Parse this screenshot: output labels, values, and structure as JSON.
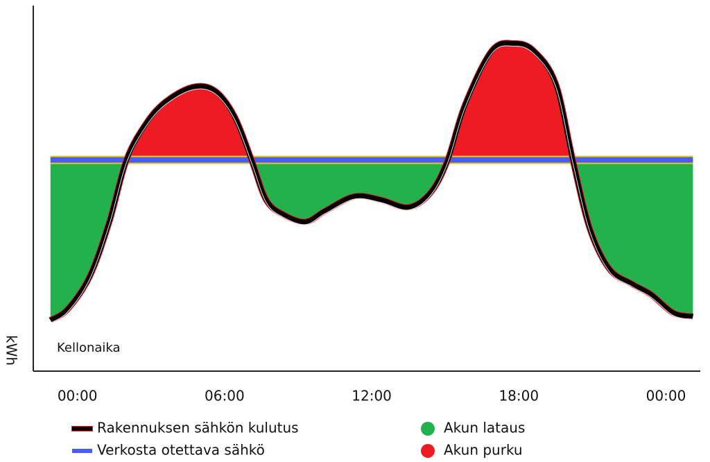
{
  "chart_data": {
    "type": "line",
    "y_label": "kWh",
    "x_label": "Kellonaika",
    "x": [
      -1.1,
      -0.4,
      0.5,
      1.3,
      2.0,
      2.8,
      3.6,
      4.7,
      5.6,
      6.4,
      7.1,
      7.7,
      8.4,
      9.3,
      10.1,
      11.3,
      12.4,
      13.5,
      14.4,
      15.1,
      15.8,
      16.9,
      17.8,
      18.6,
      19.5,
      20.2,
      20.9,
      21.7,
      22.6,
      23.4,
      24.3,
      25.1
    ],
    "series": [
      {
        "name": "Rakennuksen sähkön kulutus",
        "color": "#000000",
        "values": [
          14,
          17,
          26,
          41,
          58,
          68,
          74,
          78,
          77,
          70,
          58,
          47,
          43,
          41,
          44,
          48,
          47,
          45,
          49,
          58,
          73,
          88,
          90,
          88,
          79,
          58,
          39,
          28,
          24,
          21,
          16,
          15
        ]
      },
      {
        "name": "Verkosta otettava sähkö",
        "color": "#4a5cff",
        "values": [
          58,
          58,
          58,
          58,
          58,
          58,
          58,
          58,
          58,
          58,
          58,
          58,
          58,
          58,
          58,
          58,
          58,
          58,
          58,
          58,
          58,
          58,
          58,
          58,
          58,
          58,
          58,
          58,
          58,
          58,
          58,
          58
        ]
      }
    ],
    "areas": [
      {
        "name": "Akun lataus",
        "color": "#22b14c"
      },
      {
        "name": "Akun purku",
        "color": "#ed1c24"
      }
    ],
    "xlim": [
      -1.8,
      25.4
    ],
    "xticks": [
      {
        "value": 0,
        "label": "00:00"
      },
      {
        "value": 6,
        "label": "06:00"
      },
      {
        "value": 12,
        "label": "12:00"
      },
      {
        "value": 18,
        "label": "18:00"
      },
      {
        "value": 24,
        "label": "00:00"
      }
    ],
    "ylim": [
      0,
      100
    ]
  }
}
